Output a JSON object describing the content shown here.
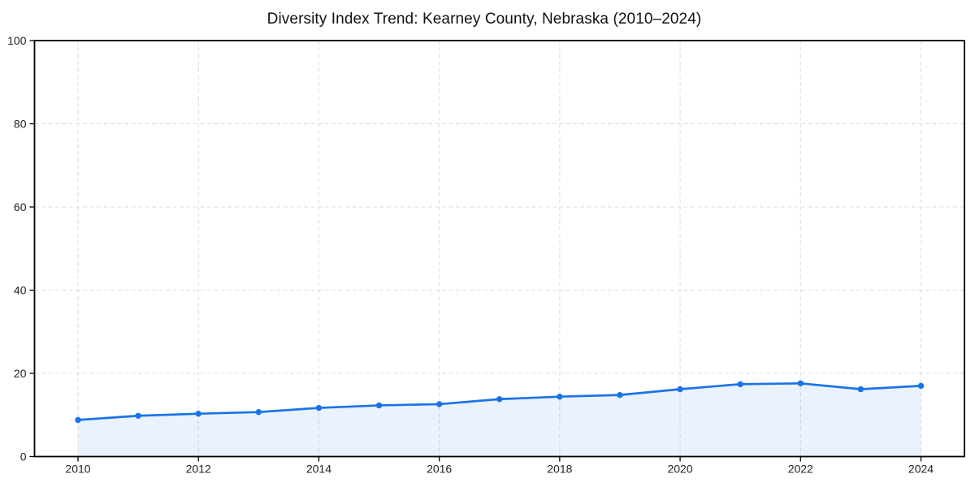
{
  "page": {
    "title": "Diversity Index Trend: Kearney County, Nebraska (2010–2024)"
  },
  "chart_data": {
    "type": "area",
    "title": "Diversity Index Trend: Kearney County, Nebraska (2010–2024)",
    "x": [
      2010,
      2011,
      2012,
      2013,
      2014,
      2015,
      2016,
      2017,
      2018,
      2019,
      2020,
      2021,
      2022,
      2023,
      2024
    ],
    "values": [
      8.8,
      9.8,
      10.3,
      10.7,
      11.7,
      12.3,
      12.6,
      13.8,
      14.4,
      14.8,
      16.2,
      17.4,
      17.6,
      16.2,
      17.0
    ],
    "series_name": "Diversity Index",
    "xlabel": "",
    "ylabel": "",
    "ylim": [
      0,
      100
    ],
    "x_ticks": [
      "2010",
      "2012",
      "2014",
      "2016",
      "2018",
      "2020",
      "2022",
      "2024"
    ],
    "y_ticks": [
      "0",
      "20",
      "40",
      "60",
      "80",
      "100"
    ],
    "grid": true,
    "grid_style": "dashed",
    "legend": false,
    "markers": true,
    "colors": {
      "line": "#1a73e8",
      "marker": "#1a73e8",
      "fill": "#1a73e8",
      "fill_opacity": 0.09,
      "grid": "#dcdcdc",
      "spine": "#000000",
      "tick_label": "#222222",
      "title": "#111111",
      "background": "#ffffff"
    }
  }
}
